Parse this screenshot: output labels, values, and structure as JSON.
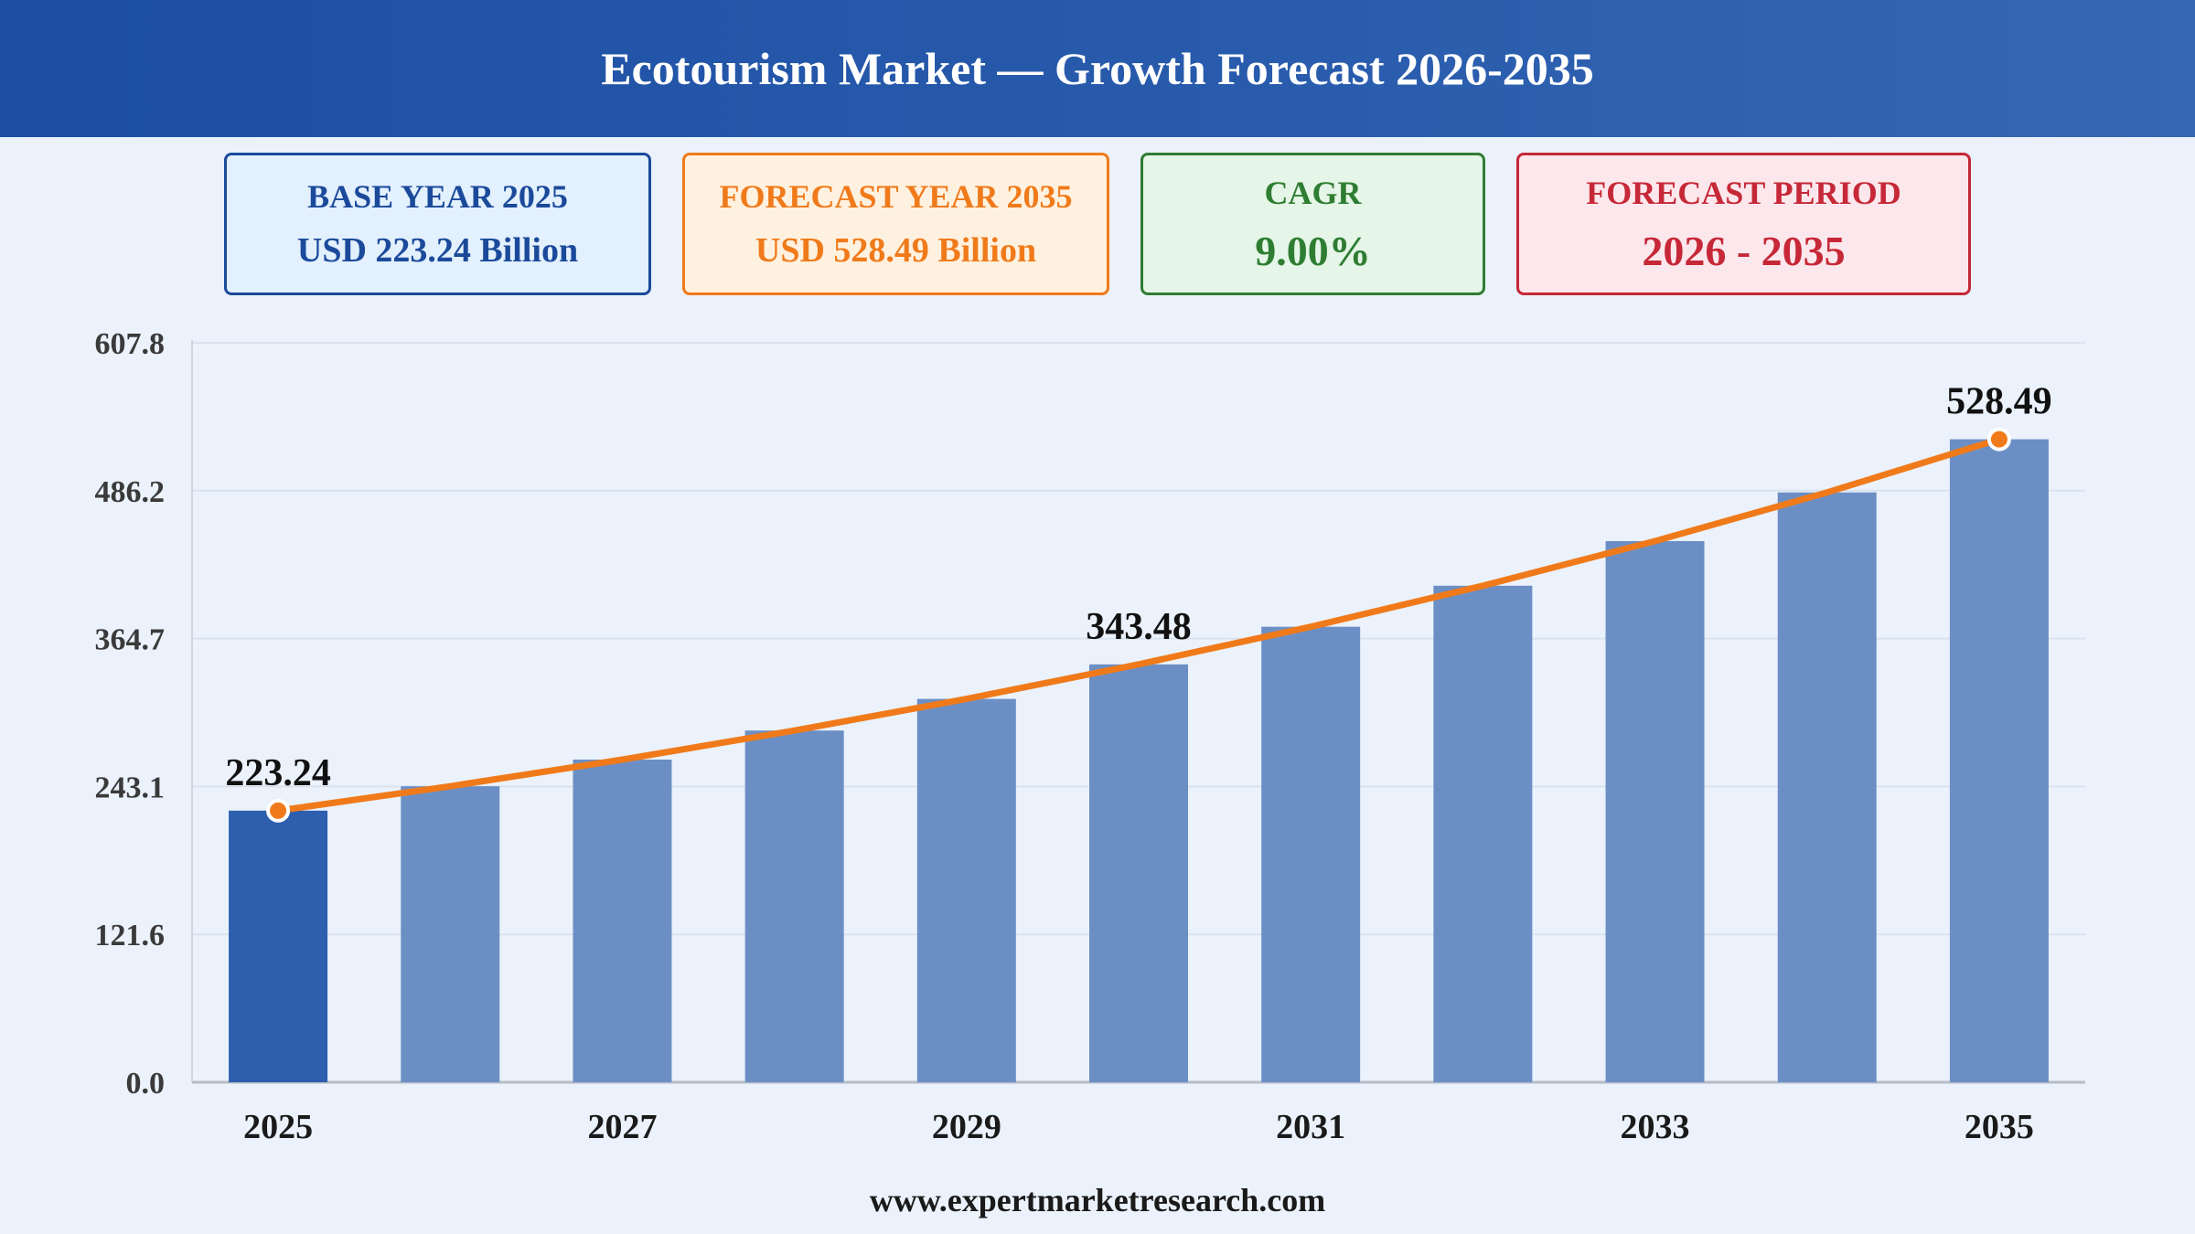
{
  "header": {
    "title": "Ecotourism Market — Growth Forecast 2026-2035"
  },
  "cards": {
    "base": {
      "label": "BASE YEAR 2025",
      "value": "USD 223.24 Billion"
    },
    "forecast": {
      "label": "FORECAST YEAR 2035",
      "value": "USD 528.49 Billion"
    },
    "cagr": {
      "label": "CAGR",
      "value": "9.00%"
    },
    "period": {
      "label": "FORECAST PERIOD",
      "value": "2026 - 2035"
    }
  },
  "footer": {
    "text": "www.expertmarketresearch.com"
  },
  "colors": {
    "bar": "#6b8fc5",
    "bar_highlight": "#2e5eae",
    "line": "#f07a1a",
    "grid": "#d9e2ee",
    "axis_text": "#3a3a3a"
  },
  "chart_data": {
    "type": "bar",
    "title": "",
    "xlabel": "",
    "ylabel": "",
    "categories": [
      "2025",
      "2026",
      "2027",
      "2028",
      "2029",
      "2030",
      "2031",
      "2032",
      "2033",
      "2034",
      "2035"
    ],
    "tick_labels_x": [
      "2025",
      "",
      "2027",
      "",
      "2029",
      "",
      "2031",
      "",
      "2033",
      "",
      "2035"
    ],
    "values": [
      223.24,
      243.3,
      265.2,
      289.1,
      315.1,
      343.48,
      374.4,
      408.1,
      444.8,
      484.8,
      528.49
    ],
    "highlight_index": 0,
    "trend_line": true,
    "data_labels": [
      {
        "index": 0,
        "text": "223.24"
      },
      {
        "index": 5,
        "text": "343.48"
      },
      {
        "index": 10,
        "text": "528.49"
      }
    ],
    "markers": [
      0,
      10
    ],
    "yticks": [
      "0.0",
      "121.6",
      "243.1",
      "364.7",
      "486.2",
      "607.8"
    ],
    "ylim": [
      0,
      607.8
    ],
    "grid": true
  }
}
